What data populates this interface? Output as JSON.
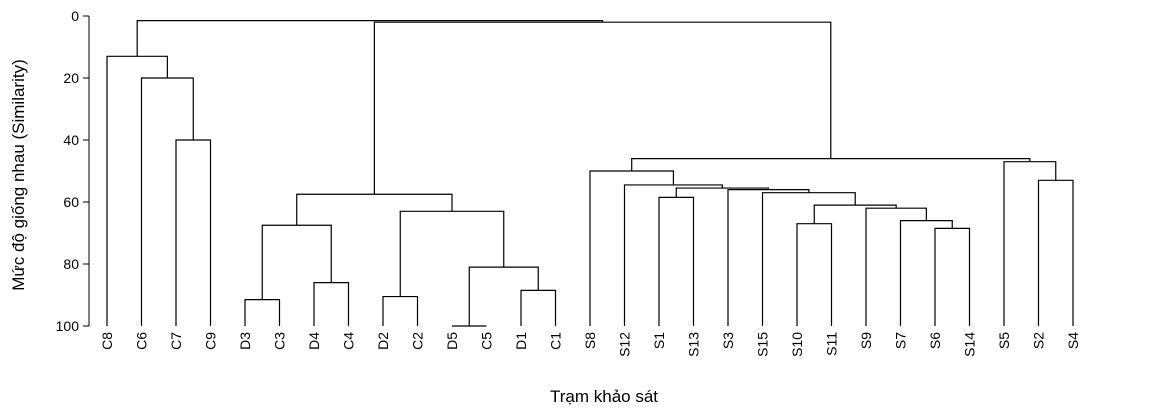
{
  "chart_data": {
    "type": "dendrogram",
    "xlabel": "Trạm khảo sát",
    "ylabel": "Mức độ giống nhau (Similarity)",
    "ylim": [
      0,
      100
    ],
    "yticks": [
      0,
      20,
      40,
      60,
      80,
      100
    ],
    "grid": false,
    "leaves": [
      "C8",
      "C6",
      "C7",
      "C9",
      "D3",
      "C3",
      "D4",
      "C4",
      "D2",
      "C2",
      "D5",
      "C5",
      "D1",
      "C1",
      "S8",
      "S12",
      "S1",
      "S13",
      "S3",
      "S15",
      "S10",
      "S11",
      "S9",
      "S7",
      "S6",
      "S14",
      "S5",
      "S2",
      "S4"
    ],
    "merges": [
      {
        "id": "m1",
        "left": "C7",
        "right": "C9",
        "similarity": 40
      },
      {
        "id": "m2",
        "left": "C6",
        "right": "m1",
        "similarity": 20
      },
      {
        "id": "m3",
        "left": "C8",
        "right": "m2",
        "similarity": 13
      },
      {
        "id": "m4",
        "left": "D3",
        "right": "C3",
        "similarity": 91.5
      },
      {
        "id": "m5",
        "left": "D4",
        "right": "C4",
        "similarity": 86
      },
      {
        "id": "m6",
        "left": "m4",
        "right": "m5",
        "similarity": 67.5
      },
      {
        "id": "m7",
        "left": "D2",
        "right": "C2",
        "similarity": 90.5
      },
      {
        "id": "m8",
        "left": "D5",
        "right": "C5",
        "similarity": 100
      },
      {
        "id": "m9",
        "left": "D1",
        "right": "C1",
        "similarity": 88.5
      },
      {
        "id": "m10",
        "left": "m8",
        "right": "m9",
        "similarity": 81
      },
      {
        "id": "m11",
        "left": "m7",
        "right": "m10",
        "similarity": 63
      },
      {
        "id": "m12",
        "left": "m6",
        "right": "m11",
        "similarity": 57.5
      },
      {
        "id": "m13",
        "left": "S1",
        "right": "S13",
        "similarity": 58.5
      },
      {
        "id": "m14",
        "left": "S10",
        "right": "S11",
        "similarity": 67
      },
      {
        "id": "m15",
        "left": "S6",
        "right": "S14",
        "similarity": 68.5
      },
      {
        "id": "m16",
        "left": "S7",
        "right": "m15",
        "similarity": 66
      },
      {
        "id": "m17",
        "left": "S9",
        "right": "m16",
        "similarity": 62
      },
      {
        "id": "m18",
        "left": "m14",
        "right": "m17",
        "similarity": 61
      },
      {
        "id": "m19",
        "left": "S15",
        "right": "m18",
        "similarity": 57
      },
      {
        "id": "m20",
        "left": "S3",
        "right": "m19",
        "similarity": 56
      },
      {
        "id": "m21",
        "left": "m13",
        "right": "m20",
        "similarity": 55.5
      },
      {
        "id": "m22",
        "left": "S12",
        "right": "m21",
        "similarity": 54.5
      },
      {
        "id": "m23",
        "left": "S8",
        "right": "m22",
        "similarity": 50
      },
      {
        "id": "m24",
        "left": "S2",
        "right": "S4",
        "similarity": 53
      },
      {
        "id": "m25",
        "left": "S5",
        "right": "m24",
        "similarity": 47
      },
      {
        "id": "m26",
        "left": "m23",
        "right": "m25",
        "similarity": 46
      },
      {
        "id": "m27",
        "left": "m12",
        "right": "m26",
        "similarity": 2
      },
      {
        "id": "m28",
        "left": "m3",
        "right": "m27",
        "similarity": 1.5
      }
    ]
  }
}
